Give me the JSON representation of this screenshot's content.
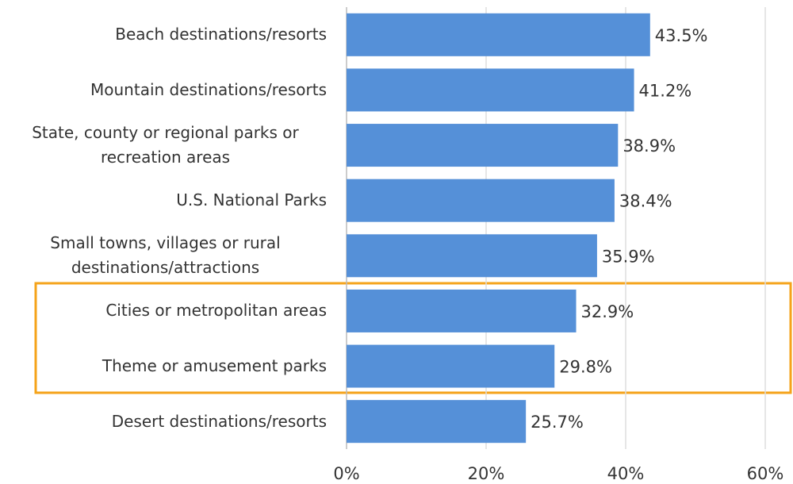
{
  "chart_data": {
    "type": "barh",
    "categories": [
      "Beach destinations/resorts",
      "Mountain destinations/resorts",
      "State, county or regional parks or recreation areas",
      "U.S. National Parks",
      "Small towns, villages or rural destinations/attractions",
      "Cities or metropolitan areas",
      "Theme or amusement parks",
      "Desert destinations/resorts"
    ],
    "values": [
      43.5,
      41.2,
      38.9,
      38.4,
      35.9,
      32.9,
      29.8,
      25.7
    ],
    "value_labels": [
      "43.5%",
      "41.2%",
      "38.9%",
      "38.4%",
      "35.9%",
      "32.9%",
      "29.8%",
      "25.7%"
    ],
    "color": "#5590d8",
    "xlim": [
      0,
      60
    ],
    "xticks": [
      {
        "value": 0,
        "label": "0%"
      },
      {
        "value": 20,
        "label": "20%"
      },
      {
        "value": 40,
        "label": "40%"
      },
      {
        "value": 60,
        "label": "60%"
      }
    ],
    "grid": true
  }
}
